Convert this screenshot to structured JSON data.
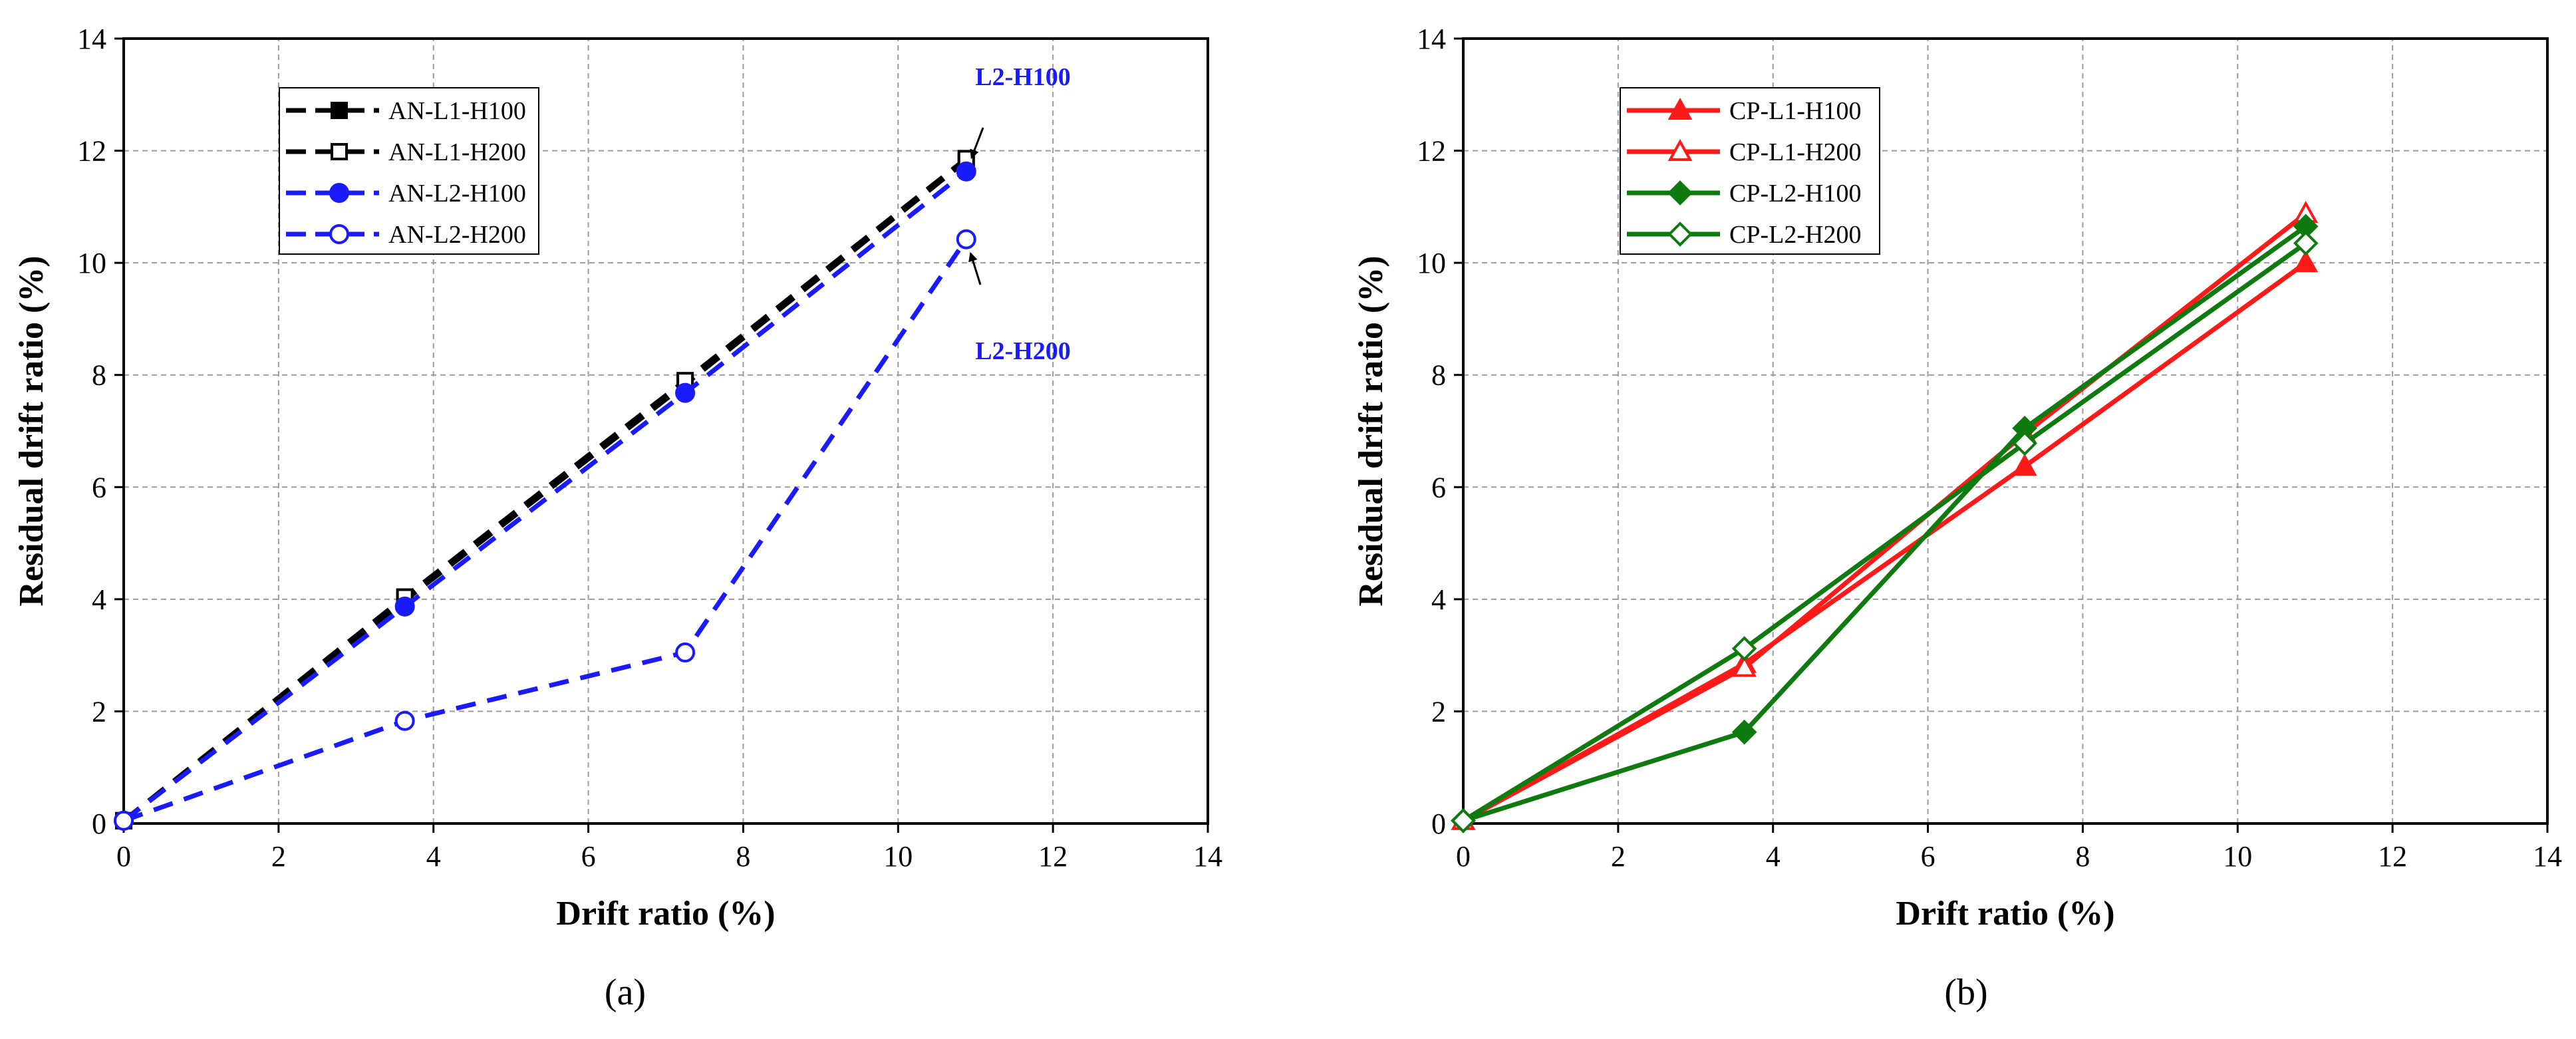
{
  "chart_data": [
    {
      "type": "line",
      "panel_label": "(a)",
      "xlabel": "Drift ratio (%)",
      "ylabel": "Residual drift ratio (%)",
      "xlim": [
        0,
        14
      ],
      "ylim": [
        0,
        14
      ],
      "xticks": [
        0,
        2,
        4,
        6,
        8,
        10,
        12,
        14
      ],
      "yticks": [
        0,
        2,
        4,
        6,
        8,
        10,
        12,
        14
      ],
      "grid": true,
      "legend_position": "top-left",
      "series": [
        {
          "name": "AN-L1-H100",
          "color": "#000000",
          "dash": "dashed",
          "marker": "square",
          "filled": true,
          "x": [
            0,
            3.63,
            7.25,
            10.88
          ],
          "y": [
            0.05,
            3.98,
            7.83,
            11.82
          ]
        },
        {
          "name": "AN-L1-H200",
          "color": "#000000",
          "dash": "dashed",
          "marker": "square",
          "filled": false,
          "x": [
            0,
            3.63,
            7.25,
            10.88
          ],
          "y": [
            0.05,
            4.04,
            7.9,
            11.86
          ]
        },
        {
          "name": "AN-L2-H100",
          "color": "#1a1aff",
          "dash": "dashed",
          "marker": "circle",
          "filled": true,
          "x": [
            0,
            3.63,
            7.25,
            10.88
          ],
          "y": [
            0.05,
            3.87,
            7.68,
            11.63
          ]
        },
        {
          "name": "AN-L2-H200",
          "color": "#1a1aff",
          "dash": "dashed",
          "marker": "circle",
          "filled": false,
          "x": [
            0,
            3.63,
            7.25,
            10.88
          ],
          "y": [
            0.05,
            1.83,
            3.05,
            10.42
          ]
        }
      ],
      "annotations": [
        {
          "text": "L2-H100",
          "target_x": 10.88,
          "target_y": 11.63
        },
        {
          "text": "L2-H200",
          "target_x": 10.88,
          "target_y": 10.42
        }
      ]
    },
    {
      "type": "line",
      "panel_label": "(b)",
      "xlabel": "Drift ratio (%)",
      "ylabel": "Residual drift ratio (%)",
      "xlim": [
        0,
        14
      ],
      "ylim": [
        0,
        14
      ],
      "xticks": [
        0,
        2,
        4,
        6,
        8,
        10,
        12,
        14
      ],
      "yticks": [
        0,
        2,
        4,
        6,
        8,
        10,
        12,
        14
      ],
      "grid": true,
      "legend_position": "top-left",
      "series": [
        {
          "name": "CP-L1-H100",
          "color": "#ff1a1a",
          "dash": "solid",
          "marker": "triangle",
          "filled": true,
          "x": [
            0,
            3.63,
            7.25,
            10.88
          ],
          "y": [
            0.05,
            2.85,
            6.37,
            10.0
          ]
        },
        {
          "name": "CP-L1-H200",
          "color": "#ff1a1a",
          "dash": "solid",
          "marker": "triangle",
          "filled": false,
          "x": [
            0,
            3.63,
            7.25,
            10.88
          ],
          "y": [
            0.05,
            2.78,
            6.95,
            10.88
          ]
        },
        {
          "name": "CP-L2-H100",
          "color": "#0f7a0f",
          "dash": "solid",
          "marker": "diamond",
          "filled": true,
          "x": [
            0,
            3.63,
            7.25,
            10.88
          ],
          "y": [
            0.05,
            1.63,
            7.05,
            10.65
          ]
        },
        {
          "name": "CP-L2-H200",
          "color": "#0f7a0f",
          "dash": "solid",
          "marker": "diamond",
          "filled": false,
          "x": [
            0,
            3.63,
            7.25,
            10.88
          ],
          "y": [
            0.05,
            3.12,
            6.78,
            10.35
          ]
        }
      ],
      "annotations": []
    }
  ]
}
